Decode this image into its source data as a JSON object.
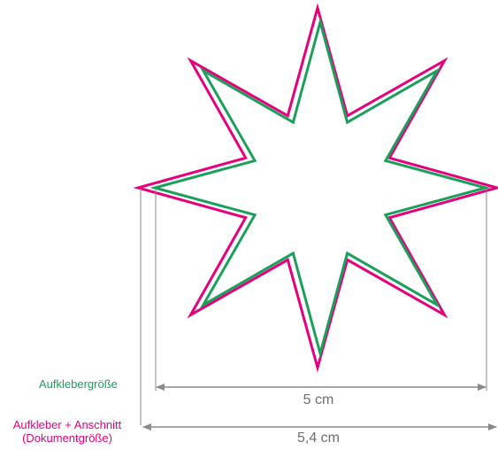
{
  "labels": {
    "sticker_size": "Aufklebergröße",
    "sticker_bleed_line1": "Aufkleber + Anschnitt",
    "sticker_bleed_line2": "(Dokumentgröße)"
  },
  "dimensions": {
    "inner_width": "5 cm",
    "outer_width": "5,4 cm"
  },
  "colors": {
    "sticker_outline": "#1aa05a",
    "bleed_outline": "#e6007e",
    "dimension_line": "#8a8a8a",
    "dimension_text": "#6f6f6f"
  },
  "shape": {
    "type": "8-point-star"
  }
}
